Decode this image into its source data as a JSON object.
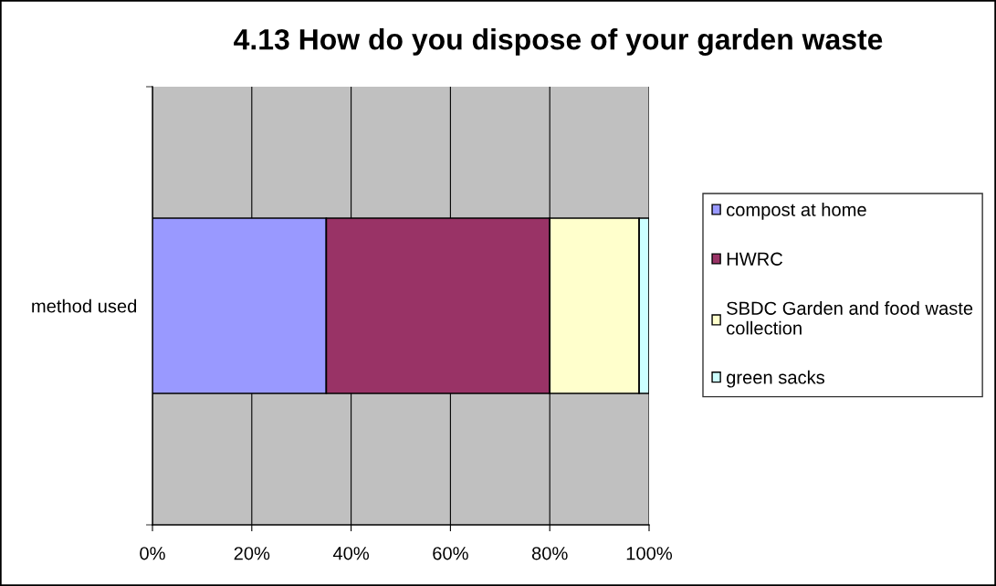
{
  "chart_data": {
    "type": "bar",
    "title": "4.13 How do you dispose of your garden waste",
    "orientation": "horizontal",
    "stacked": true,
    "categories": [
      "method used"
    ],
    "series": [
      {
        "name": "compost at home",
        "color": "#9999ff",
        "values": [
          35
        ]
      },
      {
        "name": "HWRC",
        "color": "#993366",
        "values": [
          45
        ]
      },
      {
        "name": "SBDC Garden and food waste\ncollection",
        "color": "#ffffcc",
        "values": [
          18
        ]
      },
      {
        "name": "green sacks",
        "color": "#ccffff",
        "values": [
          2
        ]
      }
    ],
    "xlim": [
      0,
      100
    ],
    "xticks": [
      {
        "value": 0,
        "label": "0%"
      },
      {
        "value": 20,
        "label": "20%"
      },
      {
        "value": 40,
        "label": "40%"
      },
      {
        "value": 60,
        "label": "60%"
      },
      {
        "value": 80,
        "label": "80%"
      },
      {
        "value": 100,
        "label": "100%"
      }
    ],
    "grid": "x",
    "legend": "right"
  }
}
